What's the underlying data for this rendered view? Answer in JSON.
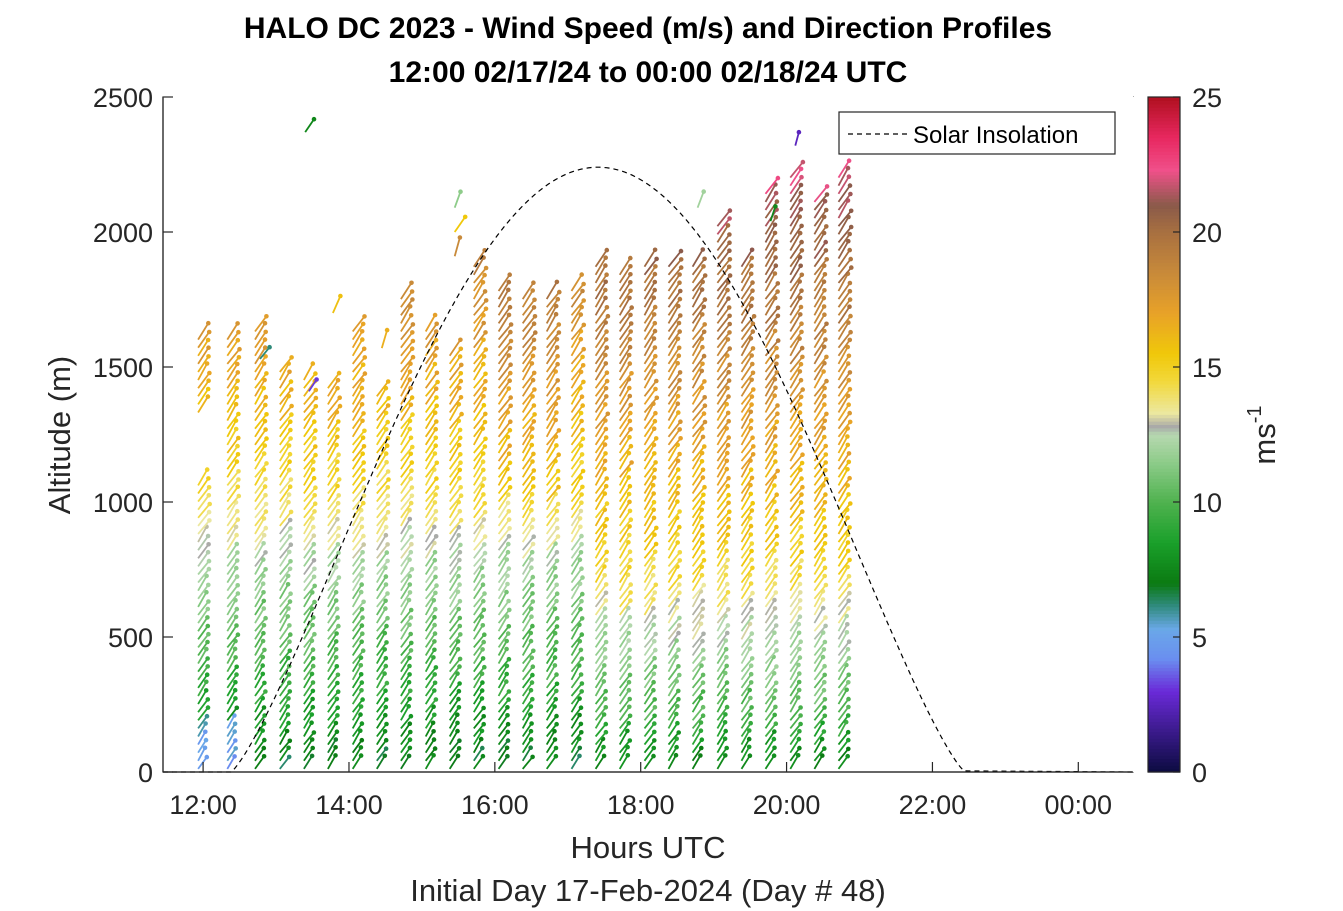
{
  "chart_data": {
    "type": "wind-barb-profile",
    "title_line1": "HALO DC 2023 - Wind Speed (m/s) and Direction Profiles",
    "title_line2": "12:00 02/17/24 to 00:00 02/18/24  UTC",
    "xlabel": "Hours UTC",
    "ylabel": "Altitude (m)",
    "subtitle": "Initial Day 17-Feb-2024 (Day # 48)",
    "xlim_hours": [
      11.45,
      24.75
    ],
    "ylim": [
      0,
      2500
    ],
    "xtick_values": [
      12,
      14,
      16,
      18,
      20,
      22,
      24
    ],
    "xtick_labels": [
      "12:00",
      "14:00",
      "16:00",
      "18:00",
      "20:00",
      "22:00",
      "00:00"
    ],
    "ytick_values": [
      0,
      500,
      1000,
      1500,
      2000,
      2500
    ],
    "ytick_labels": [
      "0",
      "500",
      "1000",
      "1500",
      "2000",
      "2500"
    ],
    "colorbar": {
      "label": "ms",
      "label_exponent": "-1",
      "range": [
        0,
        25
      ],
      "tick_values": [
        0,
        5,
        10,
        15,
        20,
        25
      ],
      "tick_labels": [
        "0",
        "5",
        "10",
        "15",
        "20",
        "25"
      ],
      "colormap": [
        {
          "v": 0,
          "c": "#0b0b40"
        },
        {
          "v": 1.5,
          "c": "#3a1a8a"
        },
        {
          "v": 3,
          "c": "#6a2ad8"
        },
        {
          "v": 4.2,
          "c": "#6a8ef0"
        },
        {
          "v": 5.3,
          "c": "#6aa8e8"
        },
        {
          "v": 6.2,
          "c": "#2e8a7a"
        },
        {
          "v": 7,
          "c": "#0b7a12"
        },
        {
          "v": 8.5,
          "c": "#1aa02a"
        },
        {
          "v": 10,
          "c": "#4fb24f"
        },
        {
          "v": 11.5,
          "c": "#8ecc8a"
        },
        {
          "v": 12.5,
          "c": "#b6d8b0"
        },
        {
          "v": 12.8,
          "c": "#a8a8a8"
        },
        {
          "v": 13.3,
          "c": "#ece8a0"
        },
        {
          "v": 14.5,
          "c": "#f2d83a"
        },
        {
          "v": 15.5,
          "c": "#f0c80a"
        },
        {
          "v": 17,
          "c": "#e8a228"
        },
        {
          "v": 18.5,
          "c": "#c88a3a"
        },
        {
          "v": 20,
          "c": "#a87040"
        },
        {
          "v": 21,
          "c": "#8a5a4a"
        },
        {
          "v": 22.3,
          "c": "#f0508a"
        },
        {
          "v": 23.5,
          "c": "#e82860"
        },
        {
          "v": 25,
          "c": "#b01020"
        }
      ]
    },
    "legend": {
      "label": "Solar Insolation",
      "position": "top-right",
      "line_style": "dashed"
    },
    "solar_insolation": {
      "sunrise_hour": 12.38,
      "sunset_hour": 22.45,
      "peak_hour": 17.42,
      "peak_altitude": 2240
    },
    "profiles": [
      {
        "t": 12.0,
        "top": 1620,
        "gap": [
          1100,
          1330
        ]
      },
      {
        "t": 12.4,
        "top": 1620
      },
      {
        "t": 12.78,
        "top": 1660
      },
      {
        "t": 13.12,
        "top": 1500
      },
      {
        "t": 13.45,
        "top": 1490
      },
      {
        "t": 13.78,
        "top": 1460
      },
      {
        "t": 14.12,
        "top": 1660
      },
      {
        "t": 14.45,
        "top": 1420
      },
      {
        "t": 14.78,
        "top": 1780
      },
      {
        "t": 15.12,
        "top": 1650
      },
      {
        "t": 15.45,
        "top": 1560
      },
      {
        "t": 15.78,
        "top": 1900
      },
      {
        "t": 16.12,
        "top": 1820
      },
      {
        "t": 16.45,
        "top": 1780
      },
      {
        "t": 16.78,
        "top": 1780
      },
      {
        "t": 17.12,
        "top": 1820
      },
      {
        "t": 17.45,
        "top": 1900
      },
      {
        "t": 17.78,
        "top": 1880
      },
      {
        "t": 18.12,
        "top": 1890
      },
      {
        "t": 18.45,
        "top": 1900
      },
      {
        "t": 18.78,
        "top": 1900
      },
      {
        "t": 19.12,
        "top": 2040
      },
      {
        "t": 19.45,
        "top": 1890
      },
      {
        "t": 19.78,
        "top": 2180
      },
      {
        "t": 20.12,
        "top": 2220
      },
      {
        "t": 20.45,
        "top": 2140
      },
      {
        "t": 20.78,
        "top": 2220
      }
    ],
    "isolated_barbs": [
      {
        "t": 13.4,
        "alt": 2370,
        "speed": 7.5
      },
      {
        "t": 15.45,
        "alt": 2090,
        "speed": 11.5
      },
      {
        "t": 15.45,
        "alt": 2000,
        "speed": 15.5
      },
      {
        "t": 15.45,
        "alt": 1910,
        "speed": 18.5
      },
      {
        "t": 18.78,
        "alt": 2090,
        "speed": 12.0
      },
      {
        "t": 20.12,
        "alt": 2320,
        "speed": 2.5
      },
      {
        "t": 19.78,
        "alt": 2040,
        "speed": 7.5
      },
      {
        "t": 14.45,
        "alt": 1570,
        "speed": 16.5
      },
      {
        "t": 13.78,
        "alt": 1700,
        "speed": 15.8
      },
      {
        "t": 12.78,
        "alt": 1530,
        "speed": 6.2
      },
      {
        "t": 13.45,
        "alt": 1410,
        "speed": 3.2
      }
    ]
  }
}
